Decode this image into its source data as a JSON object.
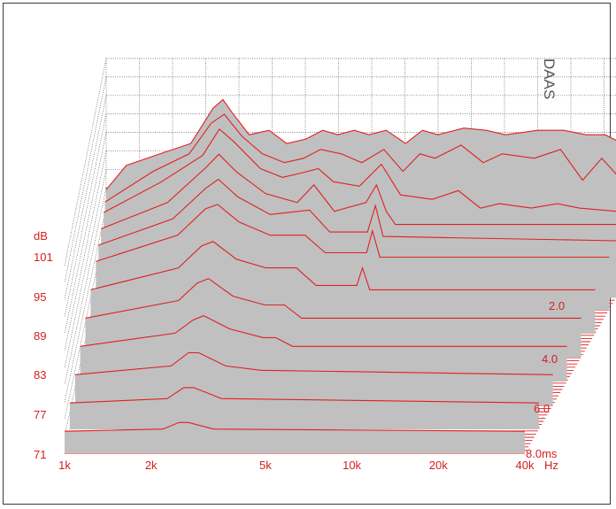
{
  "brand": "DAAS",
  "chart_data": {
    "type": "waterfall",
    "description_axes": {
      "frequency_unit": "Hz",
      "frequency_scale": "log",
      "frequency_range": [
        1000,
        40000
      ],
      "frequency_ticks": [
        "1k",
        "2k",
        "5k",
        "10k",
        "20k",
        "40k"
      ],
      "level_unit": "dB",
      "level_range": [
        71,
        101
      ],
      "level_ticks": [
        "101",
        "95",
        "89",
        "83",
        "77",
        "71"
      ],
      "time_unit": "ms",
      "time_range": [
        0,
        8.0
      ],
      "time_ticks": [
        "2.0",
        "4.0",
        "6.0",
        "8.0ms"
      ]
    },
    "grid": true,
    "colors": {
      "lines": "#e02020",
      "fill": "#c0c0c0",
      "grid": "#5a5a5a",
      "frame": "#3a3a3a"
    },
    "slices": [
      {
        "t": 0.0,
        "points": [
          [
            1000,
            87.5
          ],
          [
            1150,
            93
          ],
          [
            1500,
            96
          ],
          [
            1800,
            98
          ],
          [
            2100,
            106
          ],
          [
            2250,
            108
          ],
          [
            2400,
            105
          ],
          [
            2700,
            100
          ],
          [
            3100,
            101
          ],
          [
            3500,
            98
          ],
          [
            4000,
            99
          ],
          [
            4500,
            101
          ],
          [
            5000,
            100
          ],
          [
            5600,
            101
          ],
          [
            6200,
            100
          ],
          [
            7000,
            101
          ],
          [
            8000,
            98
          ],
          [
            9000,
            101
          ],
          [
            10000,
            100
          ],
          [
            12000,
            101.5
          ],
          [
            14000,
            101
          ],
          [
            16000,
            100
          ],
          [
            18000,
            100.5
          ],
          [
            20000,
            101
          ],
          [
            24000,
            101
          ],
          [
            28000,
            100
          ],
          [
            32000,
            100
          ],
          [
            36000,
            98
          ],
          [
            40000,
            95
          ]
        ]
      },
      {
        "t": 0.25,
        "points": [
          [
            1000,
            86
          ],
          [
            1400,
            93
          ],
          [
            1800,
            97
          ],
          [
            2100,
            104
          ],
          [
            2300,
            106
          ],
          [
            2600,
            101
          ],
          [
            3000,
            97
          ],
          [
            3500,
            95
          ],
          [
            4000,
            96
          ],
          [
            4500,
            98
          ],
          [
            5200,
            97
          ],
          [
            6000,
            95
          ],
          [
            7000,
            98
          ],
          [
            8000,
            93
          ],
          [
            9000,
            97
          ],
          [
            10000,
            96
          ],
          [
            12000,
            99
          ],
          [
            14000,
            95
          ],
          [
            16000,
            97
          ],
          [
            20000,
            96
          ],
          [
            24000,
            98
          ],
          [
            28000,
            91
          ],
          [
            32000,
            96
          ],
          [
            40000,
            88
          ]
        ]
      },
      {
        "t": 0.5,
        "points": [
          [
            1000,
            85
          ],
          [
            1500,
            92
          ],
          [
            2000,
            98
          ],
          [
            2250,
            104
          ],
          [
            2500,
            101
          ],
          [
            3000,
            95
          ],
          [
            3500,
            93
          ],
          [
            4000,
            94
          ],
          [
            4500,
            95
          ],
          [
            5000,
            92
          ],
          [
            6000,
            91
          ],
          [
            7000,
            96
          ],
          [
            8000,
            89
          ],
          [
            10000,
            88
          ],
          [
            12000,
            90
          ],
          [
            14000,
            86
          ],
          [
            16000,
            87
          ],
          [
            20000,
            86
          ],
          [
            24000,
            87
          ],
          [
            28000,
            86
          ],
          [
            40000,
            85
          ]
        ]
      },
      {
        "t": 1.0,
        "points": [
          [
            1000,
            84
          ],
          [
            1600,
            90
          ],
          [
            2100,
            98
          ],
          [
            2300,
            101
          ],
          [
            2600,
            97
          ],
          [
            3200,
            92
          ],
          [
            4000,
            90
          ],
          [
            4500,
            94
          ],
          [
            5200,
            88
          ],
          [
            6500,
            90
          ],
          [
            7000,
            94
          ],
          [
            7500,
            88
          ],
          [
            8000,
            85
          ],
          [
            40000,
            85
          ]
        ]
      },
      {
        "t": 1.5,
        "points": [
          [
            1000,
            83
          ],
          [
            1700,
            89
          ],
          [
            2150,
            96
          ],
          [
            2350,
            98
          ],
          [
            2700,
            94
          ],
          [
            3400,
            90
          ],
          [
            4500,
            91
          ],
          [
            5200,
            86
          ],
          [
            6800,
            86
          ],
          [
            7200,
            92
          ],
          [
            7600,
            85
          ],
          [
            40000,
            84
          ]
        ]
      },
      {
        "t": 2.0,
        "points": [
          [
            1000,
            82
          ],
          [
            1800,
            88
          ],
          [
            2200,
            94
          ],
          [
            2400,
            95
          ],
          [
            2800,
            91
          ],
          [
            3500,
            88
          ],
          [
            4500,
            88
          ],
          [
            5200,
            84
          ],
          [
            7000,
            84
          ],
          [
            7300,
            89
          ],
          [
            7700,
            83
          ],
          [
            40000,
            83
          ]
        ]
      },
      {
        "t": 3.0,
        "points": [
          [
            1000,
            81
          ],
          [
            1900,
            86
          ],
          [
            2250,
            91
          ],
          [
            2450,
            92
          ],
          [
            2900,
            88
          ],
          [
            3600,
            86
          ],
          [
            4500,
            86
          ],
          [
            5200,
            82
          ],
          [
            7000,
            82
          ],
          [
            7300,
            86
          ],
          [
            7700,
            81
          ],
          [
            40000,
            81
          ]
        ]
      },
      {
        "t": 4.0,
        "points": [
          [
            1000,
            80
          ],
          [
            2000,
            84
          ],
          [
            2300,
            88
          ],
          [
            2500,
            89
          ],
          [
            3000,
            85
          ],
          [
            3800,
            83
          ],
          [
            4400,
            83
          ],
          [
            5000,
            80
          ],
          [
            40000,
            80
          ]
        ]
      },
      {
        "t": 5.0,
        "points": [
          [
            1000,
            79
          ],
          [
            2050,
            82
          ],
          [
            2350,
            85
          ],
          [
            2550,
            86
          ],
          [
            3100,
            83
          ],
          [
            4000,
            81
          ],
          [
            4400,
            81
          ],
          [
            5000,
            79
          ],
          [
            40000,
            79
          ]
        ]
      },
      {
        "t": 6.0,
        "points": [
          [
            1000,
            78
          ],
          [
            2100,
            80
          ],
          [
            2400,
            83
          ],
          [
            2600,
            83
          ],
          [
            3200,
            80
          ],
          [
            4200,
            79
          ],
          [
            40000,
            78
          ]
        ]
      },
      {
        "t": 7.0,
        "points": [
          [
            1000,
            77
          ],
          [
            2150,
            78
          ],
          [
            2450,
            80.5
          ],
          [
            2650,
            80.5
          ],
          [
            3300,
            78
          ],
          [
            40000,
            77
          ]
        ]
      },
      {
        "t": 8.0,
        "points": [
          [
            1000,
            76
          ],
          [
            2200,
            76.5
          ],
          [
            2500,
            78
          ],
          [
            2700,
            78
          ],
          [
            3300,
            76.5
          ],
          [
            40000,
            76
          ]
        ]
      }
    ]
  }
}
